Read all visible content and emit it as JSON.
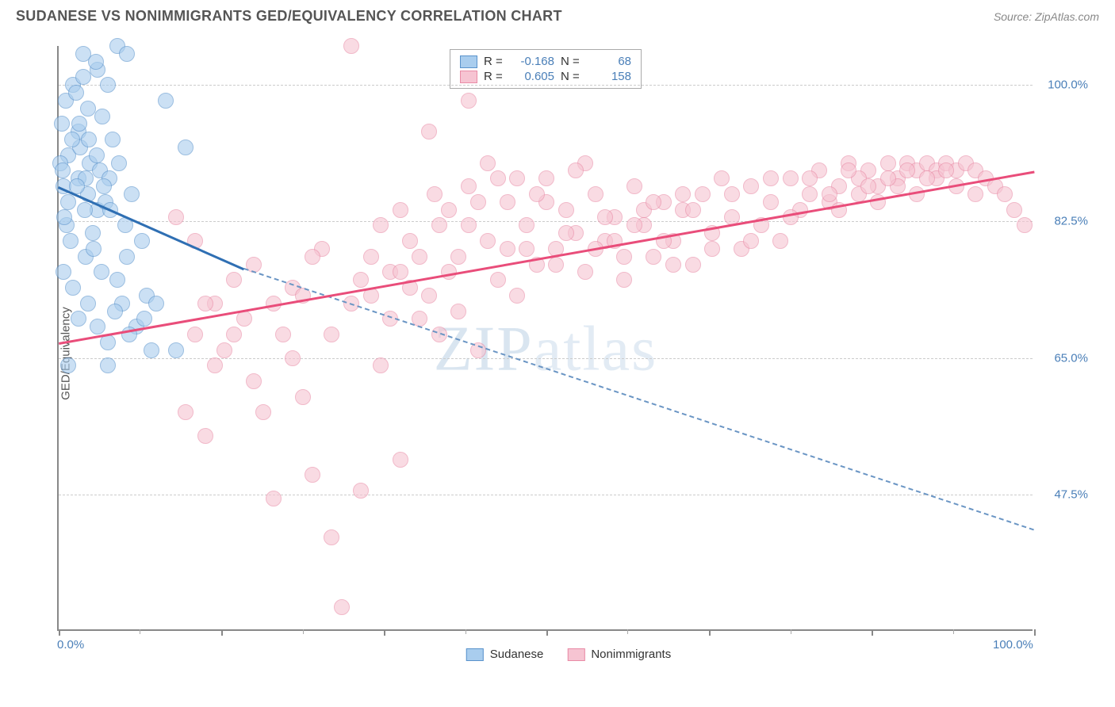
{
  "header": {
    "title": "SUDANESE VS NONIMMIGRANTS GED/EQUIVALENCY CORRELATION CHART",
    "source_prefix": "Source: ",
    "source": "ZipAtlas.com"
  },
  "watermark": {
    "bold": "ZIP",
    "light": "atlas"
  },
  "chart": {
    "type": "scatter-with-trend",
    "y_axis_title": "GED/Equivalency",
    "background_color": "#ffffff",
    "xlim": [
      0,
      100
    ],
    "ylim": [
      30,
      105
    ],
    "x_ticks_major": [
      0,
      16.67,
      33.33,
      50,
      66.67,
      83.33,
      100
    ],
    "x_ticks_minor": [
      8.33,
      25,
      41.67,
      58.33,
      75,
      91.67
    ],
    "x_labels": [
      {
        "x": 0,
        "text": "0.0%"
      },
      {
        "x": 100,
        "text": "100.0%"
      }
    ],
    "y_gridlines": [
      47.5,
      65.0,
      82.5,
      100.0
    ],
    "y_labels": [
      "47.5%",
      "65.0%",
      "82.5%",
      "100.0%"
    ],
    "grid_color": "#d0d0d0",
    "axis_color": "#888888",
    "label_color": "#4a7fb8",
    "marker_radius": 10,
    "marker_opacity": 0.35,
    "series": [
      {
        "name": "Sudanese",
        "fill": "#a9cdee",
        "stroke": "#5a93cc",
        "trend_color": "#2f6fb3",
        "dash_color": "#6a95c4",
        "R": "-0.168",
        "N": "68",
        "trend": {
          "x1": 0,
          "y1": 87,
          "x2": 19,
          "y2": 76.5,
          "x2_ext": 100,
          "y2_ext": 43
        },
        "points": [
          [
            0.5,
            87
          ],
          [
            1,
            91
          ],
          [
            1.5,
            100
          ],
          [
            2,
            94
          ],
          [
            2.5,
            104
          ],
          [
            3,
            97
          ],
          [
            3.2,
            90
          ],
          [
            4,
            102
          ],
          [
            4.5,
            96
          ],
          [
            1,
            85
          ],
          [
            2,
            88
          ],
          [
            3,
            86
          ],
          [
            4,
            84
          ],
          [
            5,
            100
          ],
          [
            6,
            105
          ],
          [
            6.5,
            72
          ],
          [
            7,
            104
          ],
          [
            0.8,
            82
          ],
          [
            1.2,
            80
          ],
          [
            2.2,
            92
          ],
          [
            2.8,
            78
          ],
          [
            3.5,
            81
          ],
          [
            4.2,
            89
          ],
          [
            5.5,
            93
          ],
          [
            0.5,
            76
          ],
          [
            1.5,
            74
          ],
          [
            2,
            70
          ],
          [
            3,
            72
          ],
          [
            4,
            69
          ],
          [
            5,
            67
          ],
          [
            6,
            75
          ],
          [
            7,
            78
          ],
          [
            0.3,
            95
          ],
          [
            0.7,
            98
          ],
          [
            1.8,
            99
          ],
          [
            2.5,
            101
          ],
          [
            3.8,
            103
          ],
          [
            5.2,
            88
          ],
          [
            8,
            69
          ],
          [
            9,
            73
          ],
          [
            10,
            72
          ],
          [
            11,
            98
          ],
          [
            12,
            66
          ],
          [
            13,
            92
          ],
          [
            1,
            64
          ],
          [
            2.8,
            88
          ],
          [
            4.8,
            85
          ],
          [
            6.2,
            90
          ],
          [
            7.5,
            86
          ],
          [
            0.2,
            90
          ],
          [
            0.6,
            83
          ],
          [
            1.4,
            93
          ],
          [
            2.1,
            95
          ],
          [
            3.1,
            93
          ],
          [
            3.9,
            91
          ],
          [
            4.6,
            87
          ],
          [
            5.3,
            84
          ],
          [
            6.8,
            82
          ],
          [
            8.5,
            80
          ],
          [
            5,
            64
          ],
          [
            9.5,
            66
          ],
          [
            0.4,
            89
          ],
          [
            1.9,
            87
          ],
          [
            2.7,
            84
          ],
          [
            3.6,
            79
          ],
          [
            4.4,
            76
          ],
          [
            5.8,
            71
          ],
          [
            7.2,
            68
          ],
          [
            8.8,
            70
          ]
        ]
      },
      {
        "name": "Nonimmigrants",
        "fill": "#f6c4d2",
        "stroke": "#e98ba6",
        "trend_color": "#e94d7a",
        "R": "0.605",
        "N": "158",
        "trend": {
          "x1": 0,
          "y1": 67,
          "x2": 100,
          "y2": 89
        },
        "points": [
          [
            12,
            83
          ],
          [
            14,
            68
          ],
          [
            15,
            55
          ],
          [
            16,
            72
          ],
          [
            18,
            75
          ],
          [
            20,
            77
          ],
          [
            22,
            47
          ],
          [
            24,
            74
          ],
          [
            25,
            60
          ],
          [
            26,
            50
          ],
          [
            27,
            79
          ],
          [
            28,
            42
          ],
          [
            29,
            33
          ],
          [
            30,
            105
          ],
          [
            31,
            48
          ],
          [
            32,
            73
          ],
          [
            33,
            64
          ],
          [
            34,
            76
          ],
          [
            35,
            52
          ],
          [
            36,
            80
          ],
          [
            37,
            78
          ],
          [
            38,
            94
          ],
          [
            38.5,
            86
          ],
          [
            39,
            82
          ],
          [
            40,
            84
          ],
          [
            41,
            78
          ],
          [
            42,
            98
          ],
          [
            43,
            66
          ],
          [
            44,
            80
          ],
          [
            45,
            75
          ],
          [
            46,
            79
          ],
          [
            47,
            88
          ],
          [
            48,
            82
          ],
          [
            49,
            77
          ],
          [
            50,
            85
          ],
          [
            51,
            79
          ],
          [
            52,
            84
          ],
          [
            53,
            81
          ],
          [
            54,
            76
          ],
          [
            55,
            86
          ],
          [
            56,
            80
          ],
          [
            57,
            83
          ],
          [
            58,
            75
          ],
          [
            59,
            87
          ],
          [
            60,
            82
          ],
          [
            61,
            78
          ],
          [
            62,
            85
          ],
          [
            63,
            80
          ],
          [
            64,
            84
          ],
          [
            65,
            77
          ],
          [
            66,
            86
          ],
          [
            67,
            81
          ],
          [
            68,
            88
          ],
          [
            69,
            83
          ],
          [
            70,
            79
          ],
          [
            71,
            87
          ],
          [
            72,
            82
          ],
          [
            73,
            85
          ],
          [
            74,
            80
          ],
          [
            75,
            88
          ],
          [
            76,
            84
          ],
          [
            77,
            86
          ],
          [
            78,
            89
          ],
          [
            79,
            85
          ],
          [
            80,
            87
          ],
          [
            81,
            90
          ],
          [
            82,
            86
          ],
          [
            83,
            89
          ],
          [
            84,
            87
          ],
          [
            85,
            90
          ],
          [
            86,
            88
          ],
          [
            87,
            90
          ],
          [
            88,
            89
          ],
          [
            89,
            90
          ],
          [
            90,
            89
          ],
          [
            91,
            90
          ],
          [
            92,
            89
          ],
          [
            93,
            90
          ],
          [
            94,
            89
          ],
          [
            95,
            88
          ],
          [
            96,
            87
          ],
          [
            97,
            86
          ],
          [
            98,
            84
          ],
          [
            99,
            82
          ],
          [
            42,
            87
          ],
          [
            44,
            90
          ],
          [
            46,
            85
          ],
          [
            48,
            79
          ],
          [
            50,
            88
          ],
          [
            52,
            81
          ],
          [
            54,
            90
          ],
          [
            56,
            83
          ],
          [
            58,
            78
          ],
          [
            60,
            84
          ],
          [
            62,
            80
          ],
          [
            64,
            86
          ],
          [
            38,
            73
          ],
          [
            40,
            76
          ],
          [
            42,
            82
          ],
          [
            35,
            84
          ],
          [
            37,
            70
          ],
          [
            39,
            68
          ],
          [
            41,
            71
          ],
          [
            43,
            85
          ],
          [
            45,
            88
          ],
          [
            47,
            73
          ],
          [
            49,
            86
          ],
          [
            51,
            77
          ],
          [
            53,
            89
          ],
          [
            55,
            79
          ],
          [
            57,
            80
          ],
          [
            59,
            82
          ],
          [
            61,
            85
          ],
          [
            63,
            77
          ],
          [
            65,
            84
          ],
          [
            67,
            79
          ],
          [
            69,
            86
          ],
          [
            71,
            80
          ],
          [
            73,
            88
          ],
          [
            75,
            83
          ],
          [
            14,
            80
          ],
          [
            16,
            64
          ],
          [
            18,
            68
          ],
          [
            20,
            62
          ],
          [
            22,
            72
          ],
          [
            24,
            65
          ],
          [
            26,
            78
          ],
          [
            31,
            75
          ],
          [
            33,
            82
          ],
          [
            35,
            76
          ],
          [
            13,
            58
          ],
          [
            15,
            72
          ],
          [
            17,
            66
          ],
          [
            19,
            70
          ],
          [
            21,
            58
          ],
          [
            23,
            68
          ],
          [
            25,
            73
          ],
          [
            28,
            68
          ],
          [
            30,
            72
          ],
          [
            32,
            78
          ],
          [
            34,
            70
          ],
          [
            36,
            74
          ],
          [
            80,
            84
          ],
          [
            82,
            88
          ],
          [
            84,
            85
          ],
          [
            86,
            87
          ],
          [
            88,
            86
          ],
          [
            90,
            88
          ],
          [
            92,
            87
          ],
          [
            94,
            86
          ],
          [
            77,
            88
          ],
          [
            79,
            86
          ],
          [
            81,
            89
          ],
          [
            83,
            87
          ],
          [
            85,
            88
          ],
          [
            87,
            89
          ],
          [
            89,
            88
          ],
          [
            91,
            89
          ]
        ]
      }
    ]
  },
  "legend_top": {
    "r_label": "R =",
    "n_label": "N ="
  }
}
